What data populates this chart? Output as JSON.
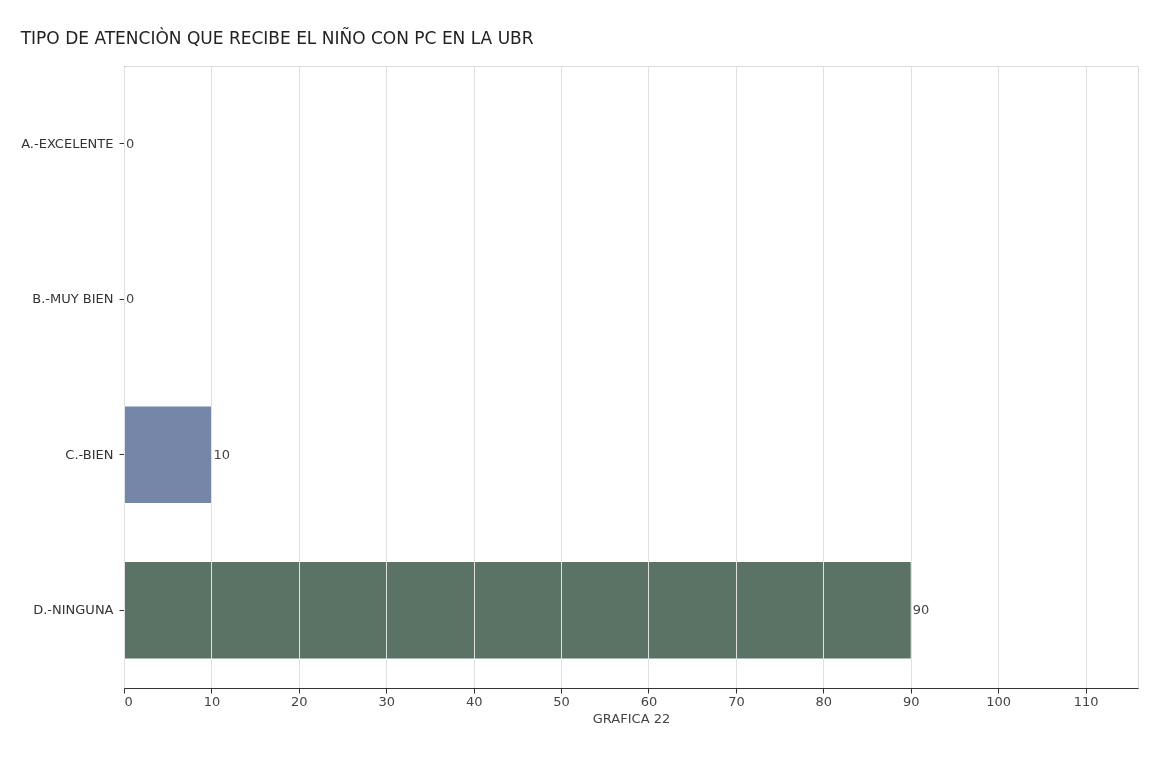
{
  "chart_data": {
    "type": "bar",
    "orientation": "horizontal",
    "title": "TIPO DE ATENCIÒN QUE RECIBE EL NIÑO CON PC EN LA UBR",
    "xlabel": "GRAFICA 22",
    "categories": [
      "A.-EXCELENTE",
      "B.-MUY BIEN",
      "C.-BIEN",
      "D.-NINGUNA"
    ],
    "values": [
      0,
      0,
      10,
      90
    ],
    "colors": [
      "#7586a8",
      "#7586a8",
      "#7586a8",
      "#5a7364"
    ],
    "xlim": [
      0,
      116
    ],
    "xticks": [
      0,
      10,
      20,
      30,
      40,
      50,
      60,
      70,
      80,
      90,
      100,
      110
    ],
    "grid": "x",
    "data_labels": true
  }
}
